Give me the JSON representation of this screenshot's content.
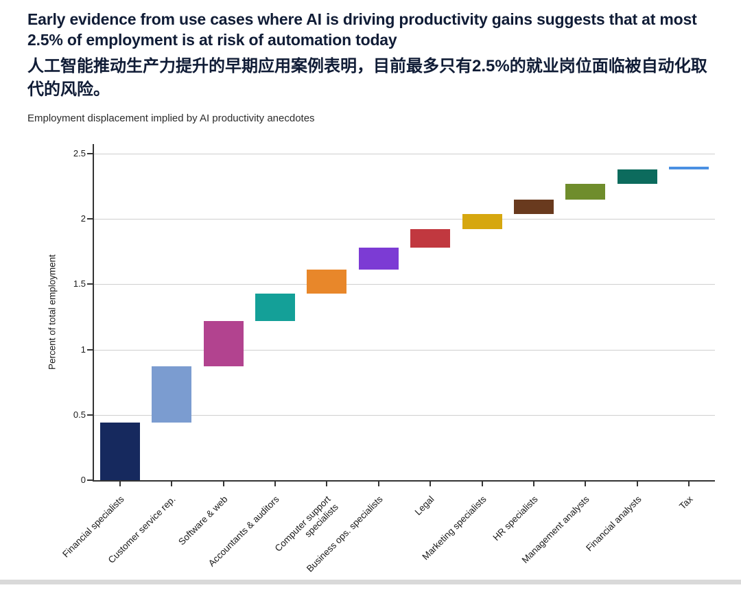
{
  "header": {
    "title_en": "Early evidence from use cases where AI is driving productivity gains suggests that at most 2.5% of employment is at risk of automation today",
    "title_zh": "人工智能推动生产力提升的早期应用案例表明，目前最多只有2.5%的就业岗位面临被自动化取代的风险。",
    "subtitle": "Employment displacement implied by AI productivity anecdotes"
  },
  "chart_data": {
    "type": "waterfall",
    "title": "Employment displacement implied by AI productivity anecdotes",
    "xlabel": "",
    "ylabel": "Percent of total employment",
    "ylim": [
      0,
      2.5
    ],
    "yticks": [
      0,
      0.5,
      1,
      1.5,
      2,
      2.5
    ],
    "ytick_labels": [
      "0",
      "0.5",
      "1",
      "1.5",
      "2",
      "2.5"
    ],
    "grid": "horizontal",
    "legend": "none",
    "categories": [
      "Financial specialists",
      "Customer service rep.",
      "Software & web",
      "Accountants & auditors",
      "Computer support specialists",
      "Business ops. specialists",
      "Legal",
      "Marketing specialists",
      "HR specialists",
      "Management analysts",
      "Financial analysts",
      "Tax"
    ],
    "segments": [
      {
        "label": "Financial specialists",
        "start": 0.0,
        "end": 0.44,
        "value": 0.44,
        "color": "#16295e"
      },
      {
        "label": "Customer service rep.",
        "start": 0.44,
        "end": 0.87,
        "value": 0.43,
        "color": "#7b9cd0"
      },
      {
        "label": "Software & web",
        "start": 0.87,
        "end": 1.22,
        "value": 0.35,
        "color": "#b2438f"
      },
      {
        "label": "Accountants & auditors",
        "start": 1.22,
        "end": 1.43,
        "value": 0.21,
        "color": "#14a098"
      },
      {
        "label": "Computer support\nspecialists",
        "start": 1.43,
        "end": 1.61,
        "value": 0.18,
        "color": "#e8872a"
      },
      {
        "label": "Business ops. specialists",
        "start": 1.61,
        "end": 1.78,
        "value": 0.17,
        "color": "#7c3bd4"
      },
      {
        "label": "Legal",
        "start": 1.78,
        "end": 1.92,
        "value": 0.14,
        "color": "#c1383f"
      },
      {
        "label": "Marketing specialists",
        "start": 1.92,
        "end": 2.04,
        "value": 0.12,
        "color": "#d6a70f"
      },
      {
        "label": "HR specialists",
        "start": 2.04,
        "end": 2.15,
        "value": 0.11,
        "color": "#693a1e"
      },
      {
        "label": "Management analysts",
        "start": 2.15,
        "end": 2.27,
        "value": 0.12,
        "color": "#6f8d2c"
      },
      {
        "label": "Financial analysts",
        "start": 2.27,
        "end": 2.38,
        "value": 0.11,
        "color": "#0c6b5d"
      },
      {
        "label": "Tax",
        "start": 2.38,
        "end": 2.4,
        "value": 0.02,
        "color": "#4a90e2",
        "thin": true
      }
    ]
  }
}
